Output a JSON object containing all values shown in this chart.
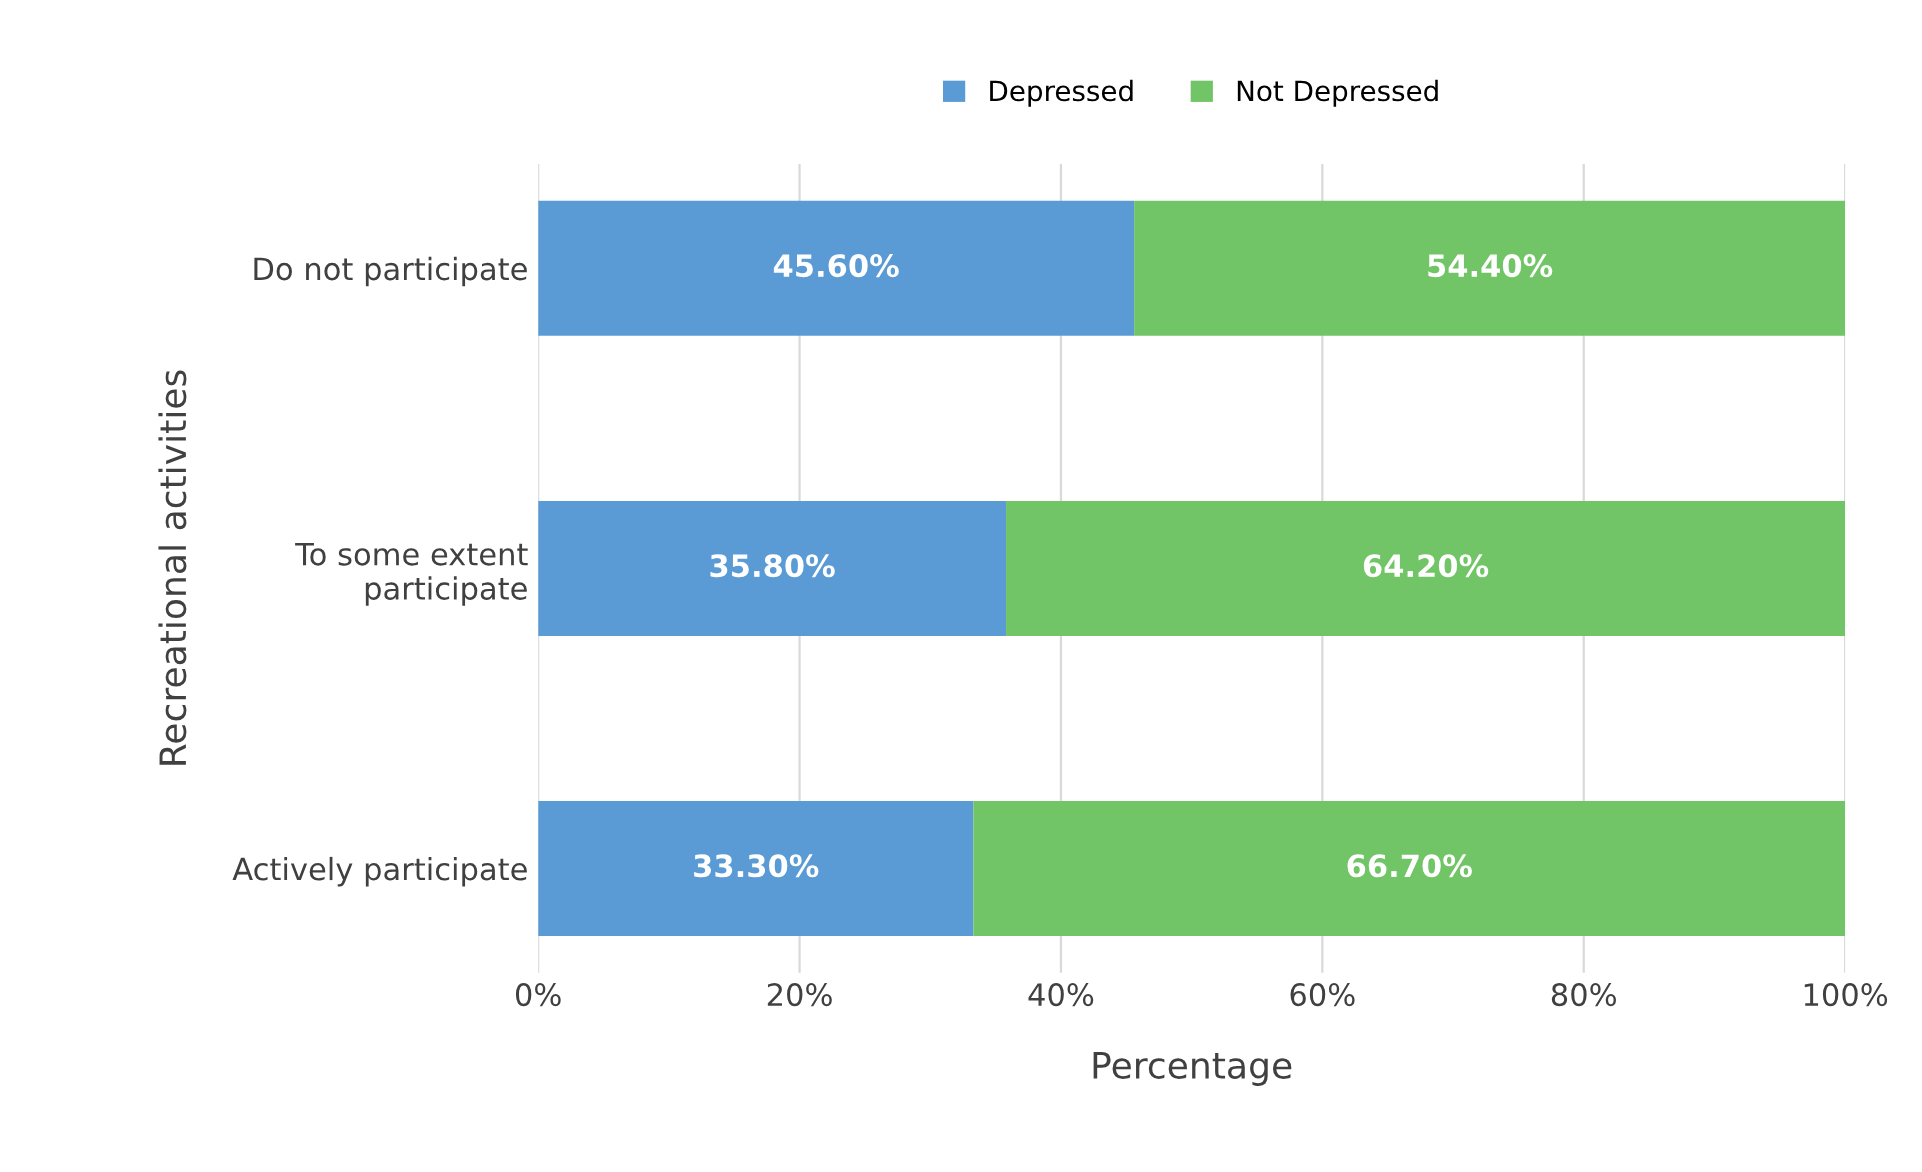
{
  "chart_data": {
    "type": "bar",
    "orientation": "horizontal",
    "stacked": true,
    "categories": [
      "Do not participate",
      "To some extent\nparticipate",
      "Actively participate"
    ],
    "series": [
      {
        "name": "Depressed",
        "color": "#5b9bd5",
        "values": [
          45.6,
          35.8,
          33.3
        ],
        "value_labels": [
          "45.60%",
          "35.80%",
          "33.30%"
        ]
      },
      {
        "name": "Not Depressed",
        "color": "#71c566",
        "values": [
          54.4,
          64.2,
          66.7
        ],
        "value_labels": [
          "54.40%",
          "64.20%",
          "66.70%"
        ]
      }
    ],
    "xlim": [
      0,
      100
    ],
    "xticks": [
      {
        "value": 0,
        "label": "0%"
      },
      {
        "value": 20,
        "label": "20%"
      },
      {
        "value": 40,
        "label": "40%"
      },
      {
        "value": 60,
        "label": "60%"
      },
      {
        "value": 80,
        "label": "80%"
      },
      {
        "value": 100,
        "label": "100%"
      }
    ],
    "xlabel": "Percentage",
    "ylabel": "Recreational activities",
    "grid": "x",
    "legend": "top"
  }
}
